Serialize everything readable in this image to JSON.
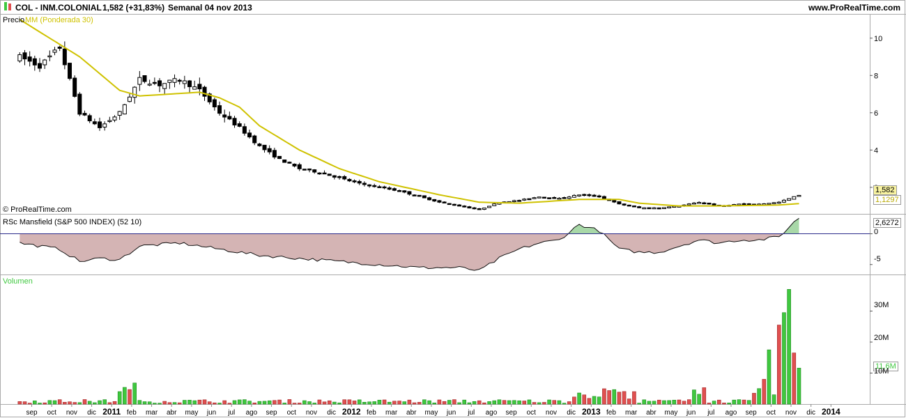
{
  "header": {
    "ticker": "COL - INM.COLONIAL",
    "price_change": "1,582 (+31,83%)",
    "period_date": "Semanal  04 nov 2013",
    "site": "www.ProRealTime.com"
  },
  "price_panel": {
    "label": "Precio",
    "ma_label": "MM (Ponderada 30)",
    "copyright": "© ProRealTime.com",
    "last_price": "1,582",
    "ma_value": "1,1297"
  },
  "rsc_panel": {
    "label": "RSc Mansfield (S&P 500 INDEX) (52 10)",
    "value": "2,6272",
    "axis_labels": [
      "0",
      "-5"
    ]
  },
  "volume_panel": {
    "label": "Volumen",
    "value": "11,6M",
    "axis_labels": [
      "30M",
      "20M",
      "10M"
    ]
  },
  "colors": {
    "ma": "#cfc200",
    "volume_up": "#3fc83f",
    "volume_down": "#e05050",
    "rsc_fill": "#d4b4b4",
    "rsc_zero": "#2a2a8a"
  },
  "chart_data": [
    {
      "type": "candlestick",
      "title": "",
      "x_start_label": "2010-09",
      "xticks": [
        "sep",
        "oct",
        "nov",
        "dic",
        "2011",
        "feb",
        "mar",
        "abr",
        "may",
        "jun",
        "jul",
        "ago",
        "sep",
        "oct",
        "nov",
        "dic",
        "2012",
        "feb",
        "mar",
        "abr",
        "may",
        "jun",
        "jul",
        "ago",
        "sep",
        "oct",
        "nov",
        "dic",
        "2013",
        "feb",
        "mar",
        "abr",
        "may",
        "jun",
        "jul",
        "ago",
        "sep",
        "oct",
        "nov",
        "dic",
        "2014"
      ],
      "ylabel": "Precio",
      "yticks": [
        10,
        8,
        6,
        4,
        2
      ],
      "ylim": [
        0.8,
        11
      ],
      "price_key_points": [
        {
          "date": "2010-08",
          "close": 9.0
        },
        {
          "date": "2010-09",
          "close": 8.5
        },
        {
          "date": "2010-10",
          "close": 9.5
        },
        {
          "date": "2010-11",
          "close": 6.0
        },
        {
          "date": "2010-12",
          "close": 5.2
        },
        {
          "date": "2011-01",
          "close": 6.0
        },
        {
          "date": "2011-02",
          "close": 7.8
        },
        {
          "date": "2011-03",
          "close": 7.5
        },
        {
          "date": "2011-04",
          "close": 7.8
        },
        {
          "date": "2011-05",
          "close": 7.2
        },
        {
          "date": "2011-06",
          "close": 6.0
        },
        {
          "date": "2011-07",
          "close": 5.2
        },
        {
          "date": "2011-08",
          "close": 4.2
        },
        {
          "date": "2011-09",
          "close": 3.5
        },
        {
          "date": "2011-10",
          "close": 3.0
        },
        {
          "date": "2011-11",
          "close": 2.8
        },
        {
          "date": "2011-12",
          "close": 2.5
        },
        {
          "date": "2012-01",
          "close": 2.2
        },
        {
          "date": "2012-02",
          "close": 2.0
        },
        {
          "date": "2012-03",
          "close": 1.8
        },
        {
          "date": "2012-04",
          "close": 1.5
        },
        {
          "date": "2012-05",
          "close": 1.2
        },
        {
          "date": "2012-06",
          "close": 1.0
        },
        {
          "date": "2012-07",
          "close": 0.8
        },
        {
          "date": "2012-08",
          "close": 1.2
        },
        {
          "date": "2012-09",
          "close": 1.3
        },
        {
          "date": "2012-10",
          "close": 1.5
        },
        {
          "date": "2012-11",
          "close": 1.4
        },
        {
          "date": "2012-12",
          "close": 1.6
        },
        {
          "date": "2013-01",
          "close": 1.5
        },
        {
          "date": "2013-02",
          "close": 1.1
        },
        {
          "date": "2013-03",
          "close": 0.9
        },
        {
          "date": "2013-04",
          "close": 0.9
        },
        {
          "date": "2013-05",
          "close": 1.0
        },
        {
          "date": "2013-06",
          "close": 1.2
        },
        {
          "date": "2013-07",
          "close": 1.0
        },
        {
          "date": "2013-08",
          "close": 1.1
        },
        {
          "date": "2013-09",
          "close": 1.1
        },
        {
          "date": "2013-10",
          "close": 1.2
        },
        {
          "date": "2013-11",
          "close": 1.582
        }
      ],
      "ma_key_points": [
        {
          "date": "2010-08",
          "value": 11.0
        },
        {
          "date": "2010-11",
          "value": 9.0
        },
        {
          "date": "2011-01",
          "value": 7.2
        },
        {
          "date": "2011-02",
          "value": 6.9
        },
        {
          "date": "2011-05",
          "value": 7.1
        },
        {
          "date": "2011-06",
          "value": 6.8
        },
        {
          "date": "2011-07",
          "value": 6.3
        },
        {
          "date": "2011-08",
          "value": 5.3
        },
        {
          "date": "2011-10",
          "value": 4.0
        },
        {
          "date": "2011-12",
          "value": 3.0
        },
        {
          "date": "2012-02",
          "value": 2.3
        },
        {
          "date": "2012-05",
          "value": 1.6
        },
        {
          "date": "2012-07",
          "value": 1.2
        },
        {
          "date": "2012-09",
          "value": 1.15
        },
        {
          "date": "2012-12",
          "value": 1.35
        },
        {
          "date": "2013-02",
          "value": 1.35
        },
        {
          "date": "2013-03",
          "value": 1.15
        },
        {
          "date": "2013-05",
          "value": 1.0
        },
        {
          "date": "2013-07",
          "value": 1.0
        },
        {
          "date": "2013-10",
          "value": 1.05
        },
        {
          "date": "2013-11",
          "value": 1.13
        }
      ]
    },
    {
      "type": "area",
      "title": "RSc Mansfield (S&P 500 INDEX) (52 10)",
      "yticks": [
        0,
        -5
      ],
      "ylim": [
        -6.5,
        3.0
      ],
      "key_points": [
        {
          "date": "2010-08",
          "value": -1.5
        },
        {
          "date": "2010-10",
          "value": -2.5
        },
        {
          "date": "2010-11",
          "value": -4.5
        },
        {
          "date": "2010-12",
          "value": -4.0
        },
        {
          "date": "2011-01",
          "value": -4.2
        },
        {
          "date": "2011-02",
          "value": -2.0
        },
        {
          "date": "2011-04",
          "value": -1.5
        },
        {
          "date": "2011-06",
          "value": -2.5
        },
        {
          "date": "2011-08",
          "value": -3.5
        },
        {
          "date": "2011-10",
          "value": -4.0
        },
        {
          "date": "2011-12",
          "value": -4.5
        },
        {
          "date": "2012-02",
          "value": -5.0
        },
        {
          "date": "2012-04",
          "value": -5.5
        },
        {
          "date": "2012-06",
          "value": -5.5
        },
        {
          "date": "2012-07",
          "value": -6.0
        },
        {
          "date": "2012-08",
          "value": -4.0
        },
        {
          "date": "2012-09",
          "value": -2.5
        },
        {
          "date": "2012-10",
          "value": -1.5
        },
        {
          "date": "2012-11",
          "value": -1.0
        },
        {
          "date": "2012-12",
          "value": 1.5
        },
        {
          "date": "2013-01",
          "value": 0.5
        },
        {
          "date": "2013-02",
          "value": -2.5
        },
        {
          "date": "2013-03",
          "value": -3.0
        },
        {
          "date": "2013-04",
          "value": -3.0
        },
        {
          "date": "2013-05",
          "value": -2.0
        },
        {
          "date": "2013-06",
          "value": -1.0
        },
        {
          "date": "2013-07",
          "value": -1.5
        },
        {
          "date": "2013-08",
          "value": -1.0
        },
        {
          "date": "2013-09",
          "value": -1.0
        },
        {
          "date": "2013-10",
          "value": -0.5
        },
        {
          "date": "2013-11",
          "value": 2.6272
        }
      ]
    },
    {
      "type": "bar",
      "title": "Volumen",
      "yticks": [
        "30M",
        "20M",
        "10M"
      ],
      "ylim": [
        0,
        40
      ],
      "unit": "M",
      "recent_weeks": [
        {
          "date": "2013-09",
          "value": 3.5,
          "dir": "down"
        },
        {
          "date": "2013-09",
          "value": 5.0,
          "dir": "up"
        },
        {
          "date": "2013-10",
          "value": 8.0,
          "dir": "down"
        },
        {
          "date": "2013-10",
          "value": 17.5,
          "dir": "up"
        },
        {
          "date": "2013-10",
          "value": 3.0,
          "dir": "up"
        },
        {
          "date": "2013-10",
          "value": 25.5,
          "dir": "down"
        },
        {
          "date": "2013-10",
          "value": 29.5,
          "dir": "up"
        },
        {
          "date": "2013-11",
          "value": 37.0,
          "dir": "up"
        },
        {
          "date": "2013-11",
          "value": 16.5,
          "dir": "down"
        },
        {
          "date": "2013-11",
          "value": 11.6,
          "dir": "up"
        }
      ]
    }
  ]
}
